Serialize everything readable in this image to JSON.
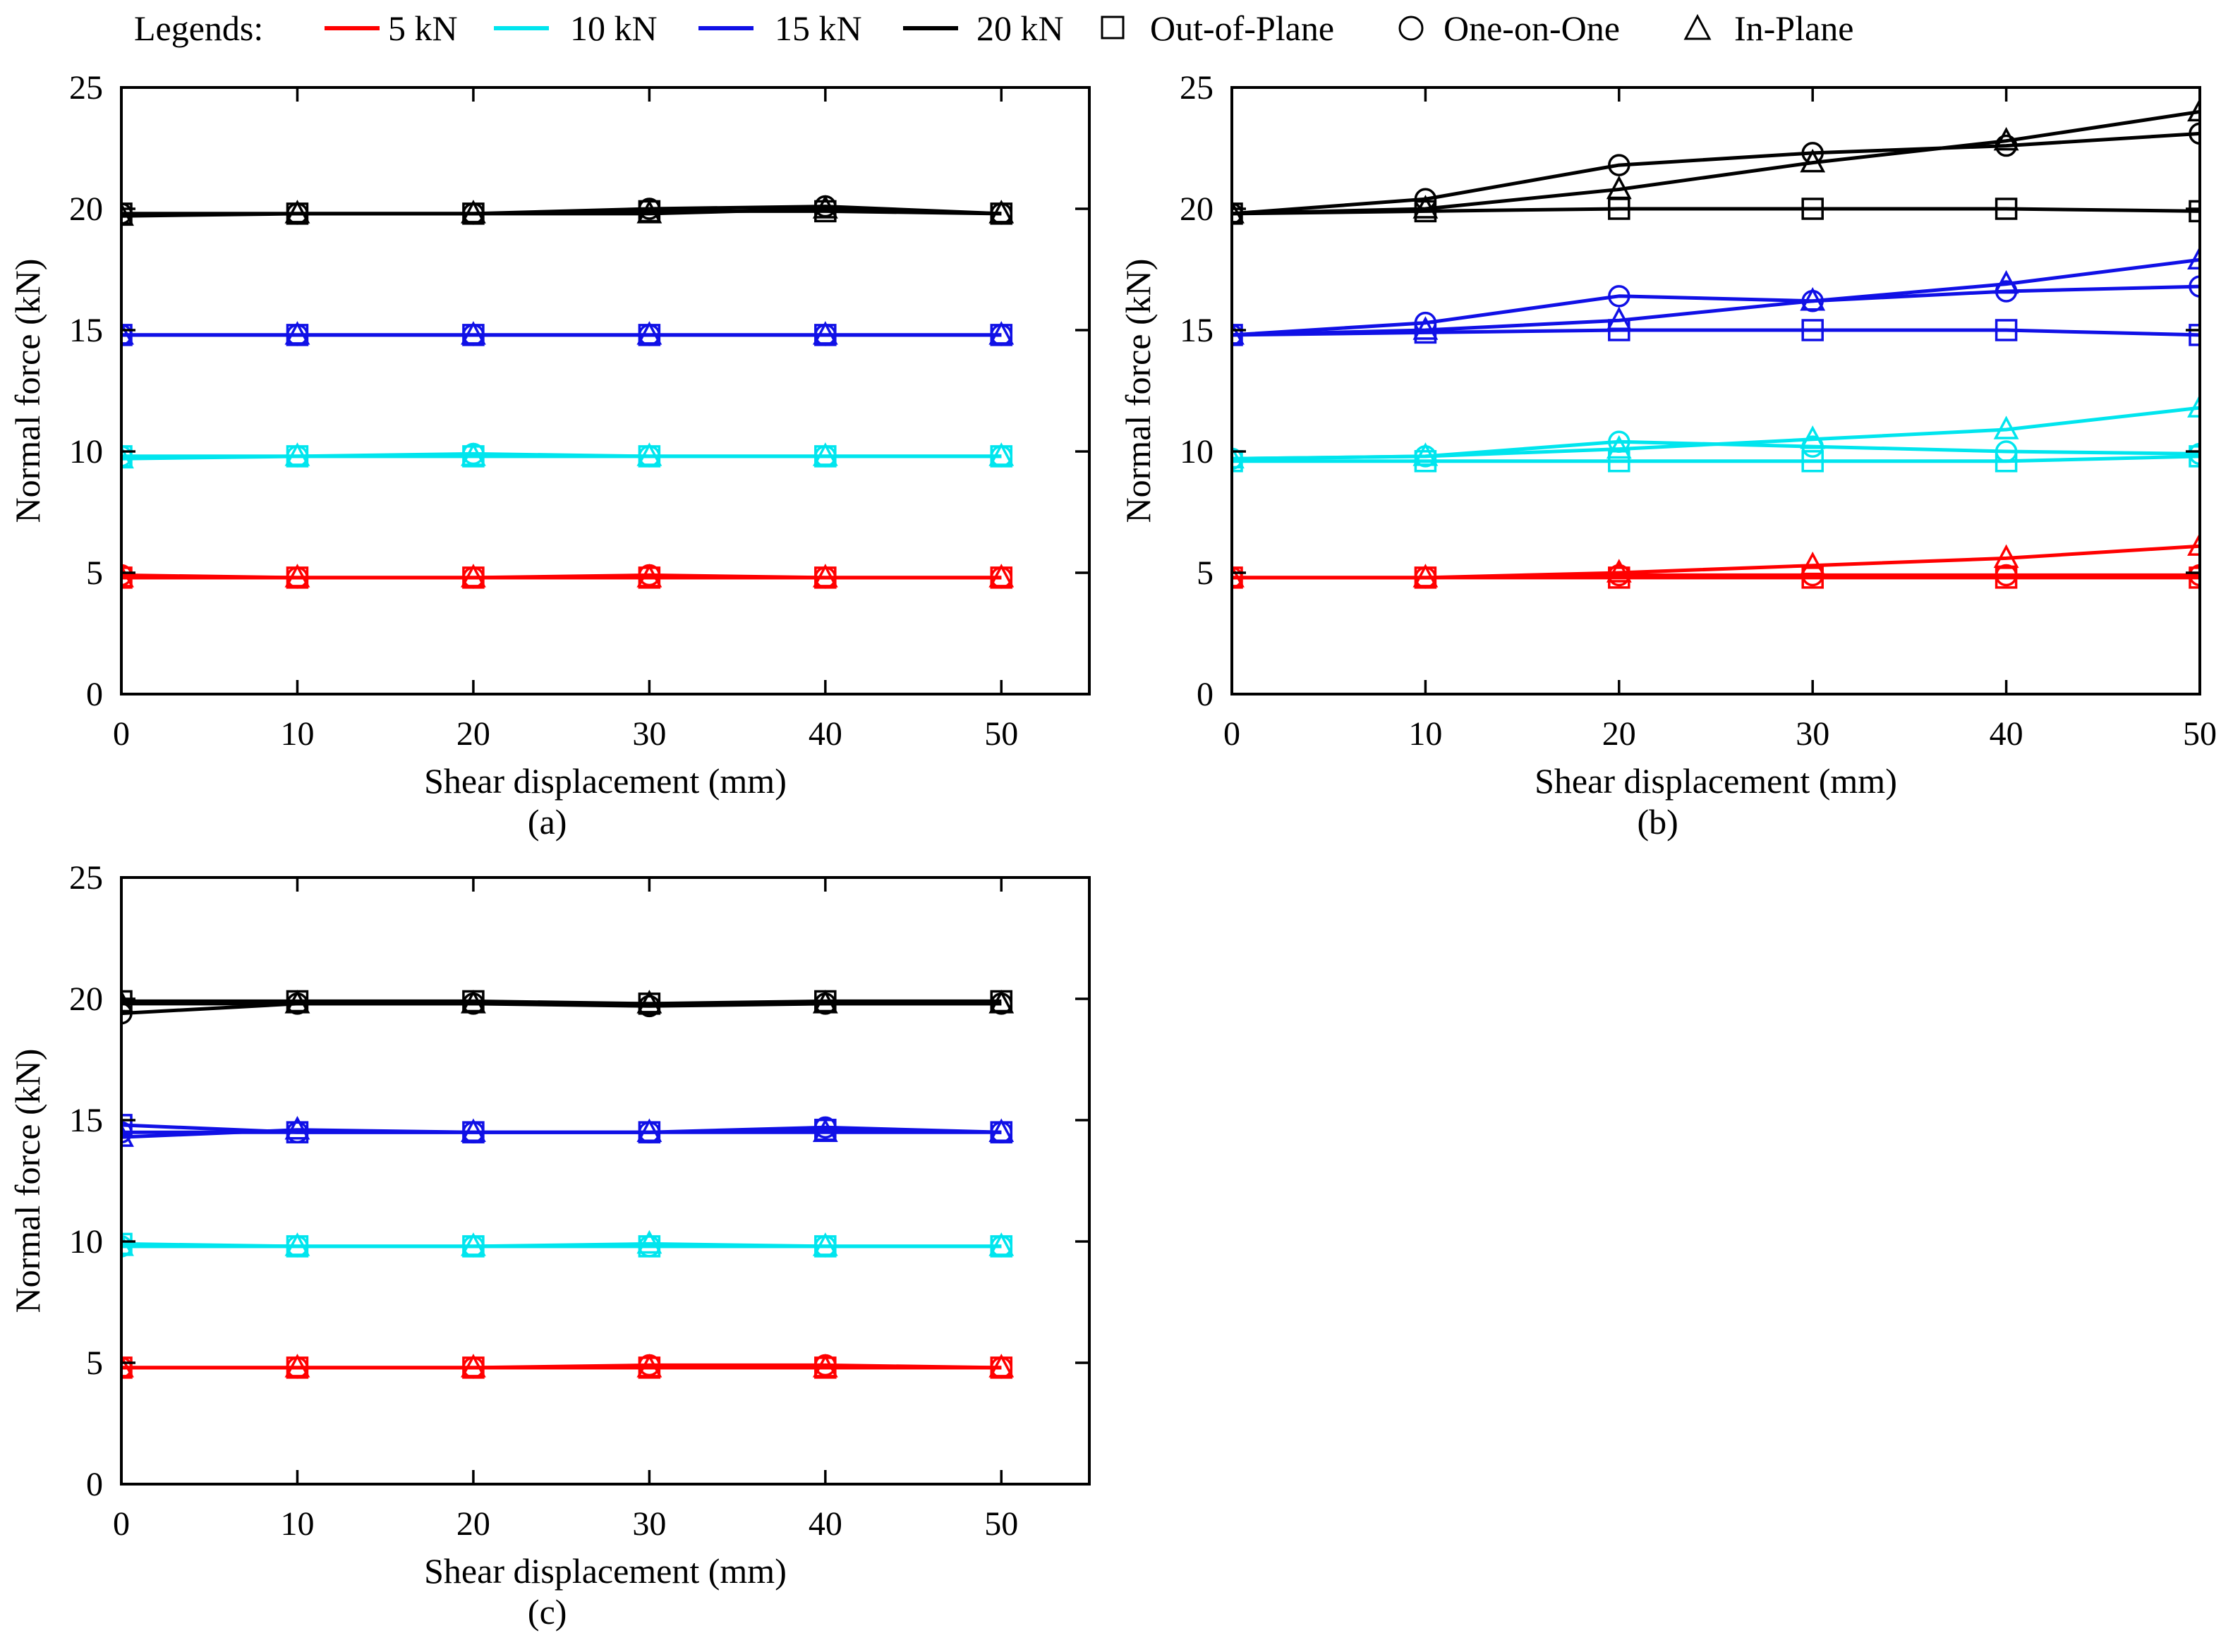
{
  "legend": {
    "title": "Legends:",
    "loads": [
      {
        "label": "5 kN",
        "color": "#ff0000"
      },
      {
        "label": "10 kN",
        "color": "#00e5ee"
      },
      {
        "label": "15 kN",
        "color": "#1010e6"
      },
      {
        "label": "20 kN",
        "color": "#000000"
      }
    ],
    "patterns": [
      {
        "label": "Out-of-Plane",
        "marker": "square"
      },
      {
        "label": "One-on-One",
        "marker": "circle"
      },
      {
        "label": "In-Plane",
        "marker": "triangle"
      }
    ]
  },
  "chart_data": [
    {
      "panel": "a",
      "caption": "(a)",
      "type": "line",
      "xlabel": "Shear displacement (mm)",
      "ylabel": "Normal force (kN)",
      "xlim": [
        0,
        55
      ],
      "ylim": [
        0,
        25
      ],
      "xticks": [
        0,
        10,
        20,
        30,
        40,
        50
      ],
      "yticks": [
        0,
        5,
        10,
        15,
        20,
        25
      ],
      "series": [
        {
          "name": "5 kN Out-of-Plane",
          "load": "5 kN",
          "color": "#ff0000",
          "marker": "square",
          "x": [
            0,
            10,
            20,
            30,
            40,
            50
          ],
          "y": [
            4.8,
            4.8,
            4.8,
            4.8,
            4.8,
            4.8
          ]
        },
        {
          "name": "5 kN One-on-One",
          "load": "5 kN",
          "color": "#ff0000",
          "marker": "circle",
          "x": [
            0,
            10,
            20,
            30,
            40,
            50
          ],
          "y": [
            4.9,
            4.8,
            4.8,
            4.9,
            4.8,
            4.8
          ]
        },
        {
          "name": "5 kN In-Plane",
          "load": "5 kN",
          "color": "#ff0000",
          "marker": "triangle",
          "x": [
            0,
            10,
            20,
            30,
            40,
            50
          ],
          "y": [
            4.8,
            4.8,
            4.8,
            4.8,
            4.8,
            4.8
          ]
        },
        {
          "name": "10 kN Out-of-Plane",
          "load": "10 kN",
          "color": "#00e5ee",
          "marker": "square",
          "x": [
            0,
            10,
            20,
            30,
            40,
            50
          ],
          "y": [
            9.8,
            9.8,
            9.8,
            9.8,
            9.8,
            9.8
          ]
        },
        {
          "name": "10 kN One-on-One",
          "load": "10 kN",
          "color": "#00e5ee",
          "marker": "circle",
          "x": [
            0,
            10,
            20,
            30,
            40,
            50
          ],
          "y": [
            9.8,
            9.8,
            9.9,
            9.8,
            9.8,
            9.8
          ]
        },
        {
          "name": "10 kN In-Plane",
          "load": "10 kN",
          "color": "#00e5ee",
          "marker": "triangle",
          "x": [
            0,
            10,
            20,
            30,
            40,
            50
          ],
          "y": [
            9.7,
            9.8,
            9.8,
            9.8,
            9.8,
            9.8
          ]
        },
        {
          "name": "15 kN Out-of-Plane",
          "load": "15 kN",
          "color": "#1010e6",
          "marker": "square",
          "x": [
            0,
            10,
            20,
            30,
            40,
            50
          ],
          "y": [
            14.8,
            14.8,
            14.8,
            14.8,
            14.8,
            14.8
          ]
        },
        {
          "name": "15 kN One-on-One",
          "load": "15 kN",
          "color": "#1010e6",
          "marker": "circle",
          "x": [
            0,
            10,
            20,
            30,
            40,
            50
          ],
          "y": [
            14.8,
            14.8,
            14.8,
            14.8,
            14.8,
            14.8
          ]
        },
        {
          "name": "15 kN In-Plane",
          "load": "15 kN",
          "color": "#1010e6",
          "marker": "triangle",
          "x": [
            0,
            10,
            20,
            30,
            40,
            50
          ],
          "y": [
            14.8,
            14.8,
            14.8,
            14.8,
            14.8,
            14.8
          ]
        },
        {
          "name": "20 kN Out-of-Plane",
          "load": "20 kN",
          "color": "#000000",
          "marker": "square",
          "x": [
            0,
            10,
            20,
            30,
            40,
            50
          ],
          "y": [
            19.8,
            19.8,
            19.8,
            19.9,
            19.9,
            19.8
          ]
        },
        {
          "name": "20 kN One-on-One",
          "load": "20 kN",
          "color": "#000000",
          "marker": "circle",
          "x": [
            0,
            10,
            20,
            30,
            40,
            50
          ],
          "y": [
            19.8,
            19.8,
            19.8,
            20.0,
            20.1,
            19.8
          ]
        },
        {
          "name": "20 kN In-Plane",
          "load": "20 kN",
          "color": "#000000",
          "marker": "triangle",
          "x": [
            0,
            10,
            20,
            30,
            40,
            50
          ],
          "y": [
            19.7,
            19.8,
            19.8,
            19.8,
            20.0,
            19.8
          ]
        }
      ]
    },
    {
      "panel": "b",
      "caption": "(b)",
      "type": "line",
      "xlabel": "Shear displacement (mm)",
      "ylabel": "Normal force (kN)",
      "xlim": [
        0,
        50
      ],
      "ylim": [
        0,
        25
      ],
      "xticks": [
        0,
        10,
        20,
        30,
        40,
        50
      ],
      "yticks": [
        0,
        5,
        10,
        15,
        20,
        25
      ],
      "series": [
        {
          "name": "5 kN Out-of-Plane",
          "load": "5 kN",
          "color": "#ff0000",
          "marker": "square",
          "x": [
            0,
            10,
            20,
            30,
            40,
            50
          ],
          "y": [
            4.8,
            4.8,
            4.8,
            4.8,
            4.8,
            4.8
          ]
        },
        {
          "name": "5 kN One-on-One",
          "load": "5 kN",
          "color": "#ff0000",
          "marker": "circle",
          "x": [
            0,
            10,
            20,
            30,
            40,
            50
          ],
          "y": [
            4.8,
            4.8,
            4.9,
            4.9,
            4.9,
            4.9
          ]
        },
        {
          "name": "5 kN In-Plane",
          "load": "5 kN",
          "color": "#ff0000",
          "marker": "triangle",
          "x": [
            0,
            10,
            20,
            30,
            40,
            50
          ],
          "y": [
            4.8,
            4.8,
            5.0,
            5.3,
            5.6,
            6.1
          ]
        },
        {
          "name": "10 kN Out-of-Plane",
          "load": "10 kN",
          "color": "#00e5ee",
          "marker": "square",
          "x": [
            0,
            10,
            20,
            30,
            40,
            50
          ],
          "y": [
            9.6,
            9.6,
            9.6,
            9.6,
            9.6,
            9.8
          ]
        },
        {
          "name": "10 kN One-on-One",
          "load": "10 kN",
          "color": "#00e5ee",
          "marker": "circle",
          "x": [
            0,
            10,
            20,
            30,
            40,
            50
          ],
          "y": [
            9.7,
            9.8,
            10.4,
            10.2,
            10.0,
            9.9
          ]
        },
        {
          "name": "10 kN In-Plane",
          "load": "10 kN",
          "color": "#00e5ee",
          "marker": "triangle",
          "x": [
            0,
            10,
            20,
            30,
            40,
            50
          ],
          "y": [
            9.7,
            9.8,
            10.1,
            10.5,
            10.9,
            11.8
          ]
        },
        {
          "name": "15 kN Out-of-Plane",
          "load": "15 kN",
          "color": "#1010e6",
          "marker": "square",
          "x": [
            0,
            10,
            20,
            30,
            40,
            50
          ],
          "y": [
            14.8,
            14.9,
            15.0,
            15.0,
            15.0,
            14.8
          ]
        },
        {
          "name": "15 kN One-on-One",
          "load": "15 kN",
          "color": "#1010e6",
          "marker": "circle",
          "x": [
            0,
            10,
            20,
            30,
            40,
            50
          ],
          "y": [
            14.8,
            15.3,
            16.4,
            16.2,
            16.6,
            16.8
          ]
        },
        {
          "name": "15 kN In-Plane",
          "load": "15 kN",
          "color": "#1010e6",
          "marker": "triangle",
          "x": [
            0,
            10,
            20,
            30,
            40,
            50
          ],
          "y": [
            14.8,
            15.0,
            15.4,
            16.2,
            16.9,
            17.9
          ]
        },
        {
          "name": "20 kN Out-of-Plane",
          "load": "20 kN",
          "color": "#000000",
          "marker": "square",
          "x": [
            0,
            10,
            20,
            30,
            40,
            50
          ],
          "y": [
            19.8,
            19.9,
            20.0,
            20.0,
            20.0,
            19.9
          ]
        },
        {
          "name": "20 kN One-on-One",
          "load": "20 kN",
          "color": "#000000",
          "marker": "circle",
          "x": [
            0,
            10,
            20,
            30,
            40,
            50
          ],
          "y": [
            19.8,
            20.4,
            21.8,
            22.3,
            22.6,
            23.1
          ]
        },
        {
          "name": "20 kN In-Plane",
          "load": "20 kN",
          "color": "#000000",
          "marker": "triangle",
          "x": [
            0,
            10,
            20,
            30,
            40,
            50
          ],
          "y": [
            19.8,
            20.0,
            20.8,
            21.9,
            22.8,
            24.0
          ]
        }
      ]
    },
    {
      "panel": "c",
      "caption": "(c)",
      "type": "line",
      "xlabel": "Shear displacement (mm)",
      "ylabel": "Normal force (kN)",
      "xlim": [
        0,
        55
      ],
      "ylim": [
        0,
        25
      ],
      "xticks": [
        0,
        10,
        20,
        30,
        40,
        50
      ],
      "yticks": [
        0,
        5,
        10,
        15,
        20,
        25
      ],
      "series": [
        {
          "name": "5 kN Out-of-Plane",
          "load": "5 kN",
          "color": "#ff0000",
          "marker": "square",
          "x": [
            0,
            10,
            20,
            30,
            40,
            50
          ],
          "y": [
            4.8,
            4.8,
            4.8,
            4.8,
            4.8,
            4.8
          ]
        },
        {
          "name": "5 kN One-on-One",
          "load": "5 kN",
          "color": "#ff0000",
          "marker": "circle",
          "x": [
            0,
            10,
            20,
            30,
            40,
            50
          ],
          "y": [
            4.8,
            4.8,
            4.8,
            4.9,
            4.9,
            4.8
          ]
        },
        {
          "name": "5 kN In-Plane",
          "load": "5 kN",
          "color": "#ff0000",
          "marker": "triangle",
          "x": [
            0,
            10,
            20,
            30,
            40,
            50
          ],
          "y": [
            4.8,
            4.8,
            4.8,
            4.8,
            4.8,
            4.8
          ]
        },
        {
          "name": "10 kN Out-of-Plane",
          "load": "10 kN",
          "color": "#00e5ee",
          "marker": "square",
          "x": [
            0,
            10,
            20,
            30,
            40,
            50
          ],
          "y": [
            9.9,
            9.8,
            9.8,
            9.8,
            9.8,
            9.8
          ]
        },
        {
          "name": "10 kN One-on-One",
          "load": "10 kN",
          "color": "#00e5ee",
          "marker": "circle",
          "x": [
            0,
            10,
            20,
            30,
            40,
            50
          ],
          "y": [
            9.8,
            9.8,
            9.8,
            9.8,
            9.8,
            9.8
          ]
        },
        {
          "name": "10 kN In-Plane",
          "load": "10 kN",
          "color": "#00e5ee",
          "marker": "triangle",
          "x": [
            0,
            10,
            20,
            30,
            40,
            50
          ],
          "y": [
            9.8,
            9.8,
            9.8,
            9.9,
            9.8,
            9.8
          ]
        },
        {
          "name": "15 kN Out-of-Plane",
          "load": "15 kN",
          "color": "#1010e6",
          "marker": "square",
          "x": [
            0,
            10,
            20,
            30,
            40,
            50
          ],
          "y": [
            14.8,
            14.5,
            14.5,
            14.5,
            14.6,
            14.5
          ]
        },
        {
          "name": "15 kN One-on-One",
          "load": "15 kN",
          "color": "#1010e6",
          "marker": "circle",
          "x": [
            0,
            10,
            20,
            30,
            40,
            50
          ],
          "y": [
            14.5,
            14.5,
            14.5,
            14.5,
            14.7,
            14.5
          ]
        },
        {
          "name": "15 kN In-Plane",
          "load": "15 kN",
          "color": "#1010e6",
          "marker": "triangle",
          "x": [
            0,
            10,
            20,
            30,
            40,
            50
          ],
          "y": [
            14.3,
            14.6,
            14.5,
            14.5,
            14.5,
            14.5
          ]
        },
        {
          "name": "20 kN Out-of-Plane",
          "load": "20 kN",
          "color": "#000000",
          "marker": "square",
          "x": [
            0,
            10,
            20,
            30,
            40,
            50
          ],
          "y": [
            19.9,
            19.9,
            19.9,
            19.8,
            19.9,
            19.9
          ]
        },
        {
          "name": "20 kN One-on-One",
          "load": "20 kN",
          "color": "#000000",
          "marker": "circle",
          "x": [
            0,
            10,
            20,
            30,
            40,
            50
          ],
          "y": [
            19.4,
            19.8,
            19.8,
            19.7,
            19.8,
            19.8
          ]
        },
        {
          "name": "20 kN In-Plane",
          "load": "20 kN",
          "color": "#000000",
          "marker": "triangle",
          "x": [
            0,
            10,
            20,
            30,
            40,
            50
          ],
          "y": [
            19.8,
            19.8,
            19.8,
            19.8,
            19.8,
            19.8
          ]
        }
      ]
    }
  ]
}
